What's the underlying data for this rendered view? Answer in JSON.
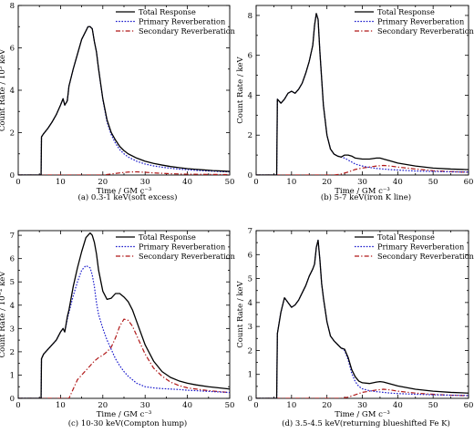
{
  "legend_labels": [
    "Total Response",
    "Primary Reverberation",
    "Secondary Reverberation"
  ],
  "colors": {
    "total": "#000000",
    "primary": "#1a1acc",
    "secondary": "#b01818"
  },
  "chart_data": [
    {
      "type": "line",
      "caption": "(a) 0.3-1 keV(soft excess)",
      "xlabel": "Time / GM c⁻³",
      "ylabel": "Count Rate / 10³ keV",
      "xlim": [
        0,
        50
      ],
      "ylim": [
        0,
        8
      ],
      "xticks": [
        0,
        10,
        20,
        30,
        40,
        50
      ],
      "yticks": [
        0,
        2,
        4,
        6,
        8
      ],
      "legend": "top-right",
      "series": [
        {
          "name": "Total Response",
          "style": "solid",
          "x": [
            0,
            5.4,
            5.5,
            6,
            7,
            8,
            9,
            10,
            10.6,
            11,
            11.6,
            12,
            13,
            14,
            15,
            16,
            16.5,
            17,
            17.5,
            18,
            18.5,
            19,
            20,
            21,
            22,
            23,
            24,
            25,
            26,
            28,
            30,
            32,
            34,
            36,
            38,
            40,
            42,
            44,
            46,
            48,
            50
          ],
          "y": [
            0,
            0,
            1.8,
            1.95,
            2.2,
            2.5,
            2.85,
            3.3,
            3.6,
            3.3,
            3.5,
            4.2,
            5.0,
            5.7,
            6.4,
            6.8,
            7.0,
            7.0,
            6.9,
            6.3,
            5.8,
            5.0,
            3.6,
            2.6,
            2.0,
            1.65,
            1.35,
            1.15,
            1.0,
            0.8,
            0.65,
            0.55,
            0.47,
            0.4,
            0.35,
            0.3,
            0.27,
            0.24,
            0.21,
            0.19,
            0.17
          ]
        },
        {
          "name": "Primary Reverberation",
          "style": "dotted",
          "x": [
            0,
            5.4,
            5.5,
            6,
            7,
            8,
            9,
            10,
            10.6,
            11,
            11.6,
            12,
            13,
            14,
            15,
            16,
            16.5,
            17,
            17.5,
            18,
            18.5,
            19,
            20,
            21,
            22,
            23,
            24,
            25,
            26,
            28,
            30,
            32,
            34,
            36,
            38,
            40,
            42,
            44,
            46,
            48,
            50
          ],
          "y": [
            0,
            0,
            1.8,
            1.95,
            2.2,
            2.5,
            2.85,
            3.3,
            3.6,
            3.3,
            3.5,
            4.2,
            5.0,
            5.7,
            6.4,
            6.8,
            7.0,
            7.0,
            6.9,
            6.3,
            5.8,
            5.0,
            3.55,
            2.5,
            1.9,
            1.5,
            1.2,
            1.0,
            0.85,
            0.65,
            0.52,
            0.43,
            0.37,
            0.32,
            0.28,
            0.25,
            0.22,
            0.2,
            0.18,
            0.16,
            0.15
          ]
        },
        {
          "name": "Secondary Reverberation",
          "style": "dashed",
          "x": [
            0,
            20,
            22,
            24,
            26,
            28,
            30,
            32,
            34,
            36,
            40,
            45,
            50
          ],
          "y": [
            0,
            0,
            0.05,
            0.1,
            0.14,
            0.15,
            0.13,
            0.1,
            0.08,
            0.06,
            0.04,
            0.03,
            0.02
          ]
        }
      ]
    },
    {
      "type": "line",
      "caption": "(b) 5-7 keV(iron K line)",
      "xlabel": "Time / GM c⁻³",
      "ylabel": "Count Rate / keV",
      "xlim": [
        0,
        60
      ],
      "ylim": [
        0,
        8.5
      ],
      "xticks": [
        0,
        10,
        20,
        30,
        40,
        50,
        60
      ],
      "yticks": [
        0,
        2,
        4,
        6,
        8
      ],
      "legend": "top-right",
      "series": [
        {
          "name": "Total Response",
          "style": "solid",
          "x": [
            0,
            5.8,
            6,
            7,
            8,
            9,
            10,
            11,
            12,
            13,
            14,
            15,
            16,
            16.5,
            17,
            17.5,
            18,
            19,
            20,
            21,
            22,
            23,
            24,
            25,
            26,
            27,
            28,
            30,
            32,
            34,
            35,
            36,
            38,
            40,
            45,
            50,
            55,
            60
          ],
          "y": [
            0,
            0,
            3.8,
            3.6,
            3.8,
            4.1,
            4.2,
            4.1,
            4.3,
            4.6,
            5.1,
            5.7,
            6.5,
            7.5,
            8.1,
            7.8,
            6.2,
            3.5,
            2.0,
            1.3,
            1.05,
            0.95,
            0.9,
            1.0,
            1.0,
            0.95,
            0.85,
            0.8,
            0.8,
            0.85,
            0.85,
            0.8,
            0.7,
            0.6,
            0.45,
            0.35,
            0.3,
            0.27
          ]
        },
        {
          "name": "Primary Reverberation",
          "style": "dotted",
          "x": [
            0,
            5.8,
            6,
            7,
            8,
            9,
            10,
            11,
            12,
            13,
            14,
            15,
            16,
            16.5,
            17,
            17.5,
            18,
            19,
            20,
            21,
            22,
            23,
            24,
            25,
            26,
            27,
            28,
            30,
            32,
            34,
            36,
            38,
            40,
            45,
            50,
            55,
            60
          ],
          "y": [
            0,
            0,
            3.8,
            3.6,
            3.8,
            4.1,
            4.2,
            4.1,
            4.3,
            4.6,
            5.1,
            5.7,
            6.5,
            7.5,
            8.1,
            7.8,
            6.2,
            3.5,
            2.0,
            1.3,
            1.05,
            0.95,
            0.9,
            0.85,
            0.75,
            0.65,
            0.55,
            0.45,
            0.38,
            0.33,
            0.3,
            0.27,
            0.25,
            0.2,
            0.18,
            0.16,
            0.15
          ]
        },
        {
          "name": "Secondary Reverberation",
          "style": "dashed",
          "x": [
            0,
            22,
            24,
            26,
            28,
            30,
            32,
            34,
            36,
            38,
            40,
            45,
            50,
            55,
            60
          ],
          "y": [
            0,
            0,
            0.05,
            0.15,
            0.28,
            0.35,
            0.4,
            0.45,
            0.48,
            0.45,
            0.4,
            0.3,
            0.22,
            0.17,
            0.14
          ]
        }
      ]
    },
    {
      "type": "line",
      "caption": "(c) 10-30 keV(Compton hump)",
      "xlabel": "Time / GM c⁻³",
      "ylabel": "Count Rate / 10⁻² keV",
      "xlim": [
        0,
        50
      ],
      "ylim": [
        0,
        7.2
      ],
      "xticks": [
        0,
        10,
        20,
        30,
        40,
        50
      ],
      "yticks": [
        0,
        1,
        2,
        3,
        4,
        5,
        6,
        7
      ],
      "legend": "top-right",
      "series": [
        {
          "name": "Total Response",
          "style": "solid",
          "x": [
            0,
            5.4,
            5.5,
            6,
            7,
            8,
            9,
            10,
            10.6,
            11,
            11.6,
            12,
            13,
            14,
            15,
            16,
            17,
            17.5,
            18,
            18.5,
            19,
            20,
            21,
            22,
            23,
            24,
            25,
            26,
            27,
            28,
            29,
            30,
            32,
            34,
            36,
            38,
            40,
            42,
            45,
            50
          ],
          "y": [
            0,
            0,
            1.7,
            1.9,
            2.1,
            2.3,
            2.5,
            2.85,
            3.0,
            2.85,
            3.5,
            3.8,
            4.8,
            5.6,
            6.3,
            6.9,
            7.1,
            7.0,
            6.7,
            6.2,
            5.5,
            4.6,
            4.25,
            4.3,
            4.5,
            4.5,
            4.35,
            4.15,
            3.8,
            3.3,
            2.8,
            2.3,
            1.6,
            1.15,
            0.9,
            0.75,
            0.65,
            0.58,
            0.5,
            0.4
          ]
        },
        {
          "name": "Primary Reverberation",
          "style": "dotted",
          "x": [
            0,
            5.4,
            5.5,
            6,
            7,
            8,
            9,
            10,
            10.6,
            11,
            11.6,
            12,
            13,
            14,
            15,
            16,
            17,
            17.5,
            18,
            18.5,
            19,
            20,
            21,
            22,
            23,
            24,
            25,
            26,
            28,
            30,
            32,
            34,
            36,
            38,
            40,
            42,
            45,
            50
          ],
          "y": [
            0,
            0,
            1.7,
            1.9,
            2.1,
            2.3,
            2.5,
            2.85,
            3.0,
            2.85,
            3.4,
            3.7,
            4.4,
            5.0,
            5.5,
            5.7,
            5.6,
            5.3,
            4.8,
            4.1,
            3.6,
            3.0,
            2.5,
            2.1,
            1.7,
            1.4,
            1.15,
            0.95,
            0.65,
            0.5,
            0.45,
            0.42,
            0.4,
            0.38,
            0.35,
            0.33,
            0.3,
            0.25
          ]
        },
        {
          "name": "Secondary Reverberation",
          "style": "dashed",
          "x": [
            0,
            12,
            13,
            14,
            15,
            16,
            17,
            18,
            19,
            20,
            21,
            22,
            23,
            24,
            25,
            26,
            27,
            28,
            29,
            30,
            32,
            34,
            36,
            38,
            40,
            42,
            45,
            50
          ],
          "y": [
            0,
            0,
            0.4,
            0.8,
            1.0,
            1.2,
            1.4,
            1.6,
            1.75,
            1.85,
            2.0,
            2.2,
            2.6,
            3.1,
            3.4,
            3.35,
            3.1,
            2.7,
            2.3,
            1.9,
            1.3,
            0.95,
            0.7,
            0.55,
            0.45,
            0.4,
            0.33,
            0.25
          ]
        }
      ]
    },
    {
      "type": "line",
      "caption": "(d) 3.5-4.5 keV(returning blueshifted Fe K)",
      "xlabel": "Time / GM c⁻³",
      "ylabel": "Count Rate / keV",
      "xlim": [
        0,
        60
      ],
      "ylim": [
        0,
        7
      ],
      "xticks": [
        0,
        10,
        20,
        30,
        40,
        50,
        60
      ],
      "yticks": [
        0,
        1,
        2,
        3,
        4,
        5,
        6,
        7
      ],
      "legend": "top-right",
      "series": [
        {
          "name": "Total Response",
          "style": "solid",
          "x": [
            0,
            5.8,
            6,
            7,
            8,
            9,
            10,
            11,
            12,
            13,
            14,
            15,
            16,
            16.5,
            17,
            17.5,
            18,
            18.5,
            19,
            20,
            21,
            22,
            23,
            24,
            25,
            26,
            27,
            28,
            29,
            30,
            32,
            34,
            35,
            36,
            38,
            40,
            45,
            50,
            55,
            60
          ],
          "y": [
            0,
            0,
            2.7,
            3.6,
            4.2,
            4.0,
            3.8,
            3.9,
            4.1,
            4.4,
            4.7,
            5.1,
            5.4,
            5.6,
            6.3,
            6.6,
            5.8,
            4.8,
            4.2,
            3.2,
            2.6,
            2.4,
            2.25,
            2.1,
            2.05,
            1.7,
            1.2,
            0.9,
            0.72,
            0.65,
            0.62,
            0.68,
            0.7,
            0.68,
            0.6,
            0.52,
            0.38,
            0.3,
            0.25,
            0.22
          ]
        },
        {
          "name": "Primary Reverberation",
          "style": "dotted",
          "x": [
            0,
            5.8,
            6,
            7,
            8,
            9,
            10,
            11,
            12,
            13,
            14,
            15,
            16,
            16.5,
            17,
            17.5,
            18,
            18.5,
            19,
            20,
            21,
            22,
            23,
            24,
            25,
            26,
            27,
            28,
            29,
            30,
            32,
            34,
            36,
            38,
            40,
            45,
            50,
            55,
            60
          ],
          "y": [
            0,
            0,
            2.7,
            3.6,
            4.2,
            4.0,
            3.8,
            3.9,
            4.1,
            4.4,
            4.7,
            5.1,
            5.4,
            5.6,
            6.3,
            6.6,
            5.8,
            4.8,
            4.2,
            3.2,
            2.6,
            2.4,
            2.25,
            2.1,
            2.0,
            1.6,
            1.05,
            0.7,
            0.5,
            0.4,
            0.32,
            0.28,
            0.25,
            0.22,
            0.2,
            0.17,
            0.15,
            0.13,
            0.12
          ]
        },
        {
          "name": "Secondary Reverberation",
          "style": "dashed",
          "x": [
            0,
            24,
            26,
            28,
            30,
            32,
            34,
            36,
            38,
            40,
            45,
            50,
            55,
            60
          ],
          "y": [
            0,
            0,
            0.05,
            0.15,
            0.25,
            0.3,
            0.35,
            0.38,
            0.35,
            0.3,
            0.22,
            0.17,
            0.13,
            0.11
          ]
        }
      ]
    }
  ]
}
